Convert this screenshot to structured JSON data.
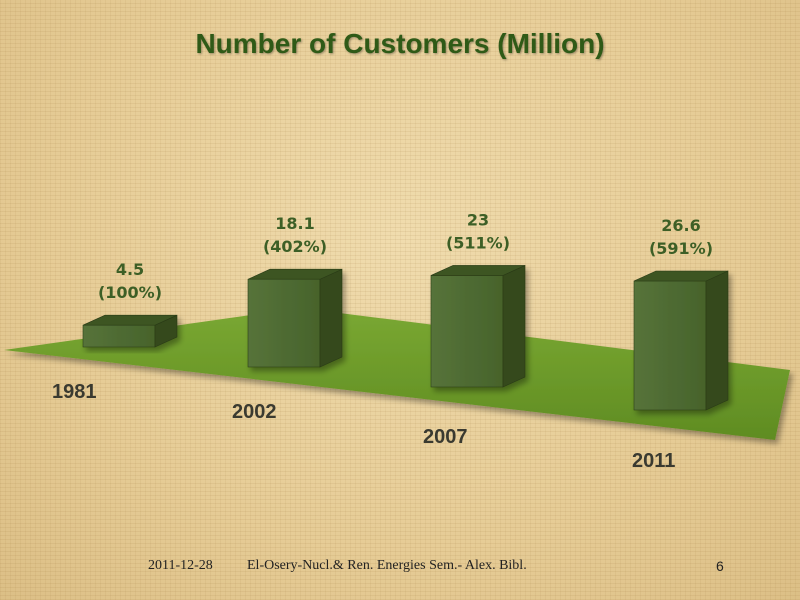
{
  "chart_data": {
    "type": "bar",
    "title": "Number of Customers (Million)",
    "categories": [
      "1981",
      "2002",
      "2007",
      "2011"
    ],
    "values": [
      4.5,
      18.1,
      23,
      26.6
    ],
    "value_labels": [
      "4.5",
      "18.1",
      "23",
      "26.6"
    ],
    "percent_labels": [
      "(100%)",
      "(402%)",
      "(511%)",
      "(591%)"
    ],
    "grid": false,
    "legend": "none",
    "colors": {
      "floor": "#6f9a2a",
      "bar_front": "#4c6a2b",
      "bar_top": "#3d5523",
      "bar_side": "#34481e",
      "title": "#2f5a17",
      "value_label": "#3d5f26"
    }
  },
  "footer": {
    "date": "2011-12-28",
    "text": "El-Osery-Nucl.& Ren. Energies Sem.- Alex. Bibl.",
    "page": "6"
  }
}
